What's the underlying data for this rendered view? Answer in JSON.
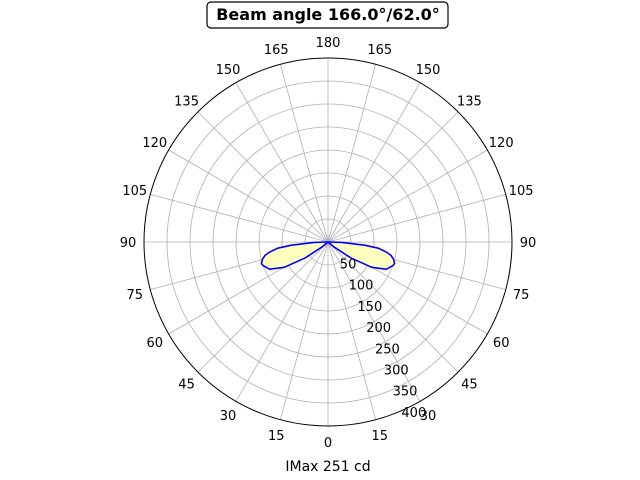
{
  "chart_data": {
    "type": "polar-line",
    "title": "Beam angle 166.0°/62.0°",
    "xlabel": "IMax 251 cd",
    "angle_ticks_left": [
      0,
      15,
      30,
      45,
      60,
      75,
      90,
      105,
      120,
      135,
      150,
      165,
      180
    ],
    "angle_ticks_right": [
      15,
      30,
      45,
      60,
      75,
      90,
      105,
      120,
      135,
      150,
      165
    ],
    "radial_ticks": [
      50,
      100,
      150,
      200,
      250,
      300,
      350,
      400
    ],
    "rlim": [
      0,
      400
    ],
    "grid": true,
    "line_color": "#0000ff",
    "fill_color": "#ffffc0",
    "series": [
      {
        "angles": [
          0,
          5,
          10,
          15,
          20,
          25,
          30,
          35,
          40,
          45,
          50,
          55,
          60,
          65,
          70,
          72,
          75,
          78,
          80,
          83,
          85,
          88,
          90
        ],
        "values": [
          0,
          0,
          0,
          0,
          0,
          0,
          0,
          0,
          0,
          0,
          15,
          60,
          110,
          140,
          150,
          152,
          148,
          140,
          130,
          110,
          80,
          30,
          0
        ]
      }
    ]
  }
}
